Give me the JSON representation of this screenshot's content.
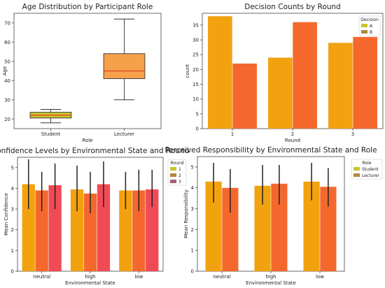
{
  "figure": {
    "colors": {
      "orange": "#f2a20f",
      "red_orange": "#f5682d",
      "green": "#c6c52b",
      "brown": "#b0893c",
      "mauve": "#a46070",
      "box_fill": "#f5a14a",
      "box_median": "#e0532b",
      "whisker": "#333333",
      "error_bar": "#222222"
    }
  },
  "chart_data": [
    {
      "id": "age",
      "type": "box",
      "title": "Age Distribution by Participant Role",
      "xlabel": "Role",
      "ylabel": "Age",
      "ylim": [
        15,
        75
      ],
      "yticks": [
        20,
        30,
        40,
        50,
        60,
        70
      ],
      "categories": [
        "Student",
        "Lecturer"
      ],
      "boxes": [
        {
          "name": "Student",
          "min": 18,
          "q1": 20.5,
          "median": 22,
          "q3": 23.5,
          "max": 25
        },
        {
          "name": "Lecturer",
          "min": 30,
          "q1": 41,
          "median": 45,
          "q3": 54,
          "max": 72
        }
      ]
    },
    {
      "id": "decisions",
      "type": "bar",
      "title": "Decision Counts by Round",
      "xlabel": "Round",
      "ylabel": "count",
      "ylim": [
        0,
        39
      ],
      "yticks": [
        0,
        5,
        10,
        15,
        20,
        25,
        30,
        35
      ],
      "categories": [
        "1",
        "2",
        "3"
      ],
      "legend": {
        "title": "Decision",
        "position": "top-right"
      },
      "series": [
        {
          "name": "A",
          "values": [
            38,
            24,
            29
          ]
        },
        {
          "name": "B",
          "values": [
            22,
            36,
            31
          ]
        }
      ]
    },
    {
      "id": "confidence",
      "type": "bar",
      "title": "Confidence Levels by Environmental State and Round",
      "xlabel": "Environmental State",
      "ylabel": "Mean Confidence",
      "ylim": [
        0,
        5.5
      ],
      "yticks": [
        0,
        1,
        2,
        3,
        4,
        5
      ],
      "categories": [
        "neutral",
        "high",
        "low"
      ],
      "legend": {
        "title": "Round",
        "position": "top-right"
      },
      "series": [
        {
          "name": "1",
          "values": [
            4.2,
            3.95,
            3.9
          ],
          "err_low": [
            3.0,
            2.9,
            3.0
          ],
          "err_high": [
            5.4,
            5.1,
            4.8
          ]
        },
        {
          "name": "2",
          "values": [
            3.9,
            3.75,
            3.9
          ],
          "err_low": [
            2.9,
            2.8,
            2.9
          ],
          "err_high": [
            4.8,
            4.8,
            4.9
          ]
        },
        {
          "name": "3",
          "values": [
            4.15,
            4.2,
            3.95
          ],
          "err_low": [
            3.0,
            3.1,
            3.1
          ],
          "err_high": [
            5.2,
            5.3,
            4.9
          ]
        }
      ]
    },
    {
      "id": "responsibility",
      "type": "bar",
      "title": "Perceived Responsibility by Environmental State and Role",
      "xlabel": "Environmental State",
      "ylabel": "Mean Responsibility",
      "ylim": [
        0,
        5.5
      ],
      "yticks": [
        0,
        1,
        2,
        3,
        4,
        5
      ],
      "categories": [
        "neutral",
        "high",
        "low"
      ],
      "legend": {
        "title": "Role",
        "position": "top-right"
      },
      "series": [
        {
          "name": "Student",
          "values": [
            4.3,
            4.1,
            4.3
          ],
          "err_low": [
            3.3,
            3.2,
            3.4
          ],
          "err_high": [
            5.2,
            5.1,
            5.2
          ]
        },
        {
          "name": "Lecturer",
          "values": [
            4.0,
            4.2,
            4.05
          ],
          "err_low": [
            2.8,
            3.2,
            3.1
          ],
          "err_high": [
            4.9,
            5.1,
            4.95
          ]
        }
      ]
    }
  ]
}
